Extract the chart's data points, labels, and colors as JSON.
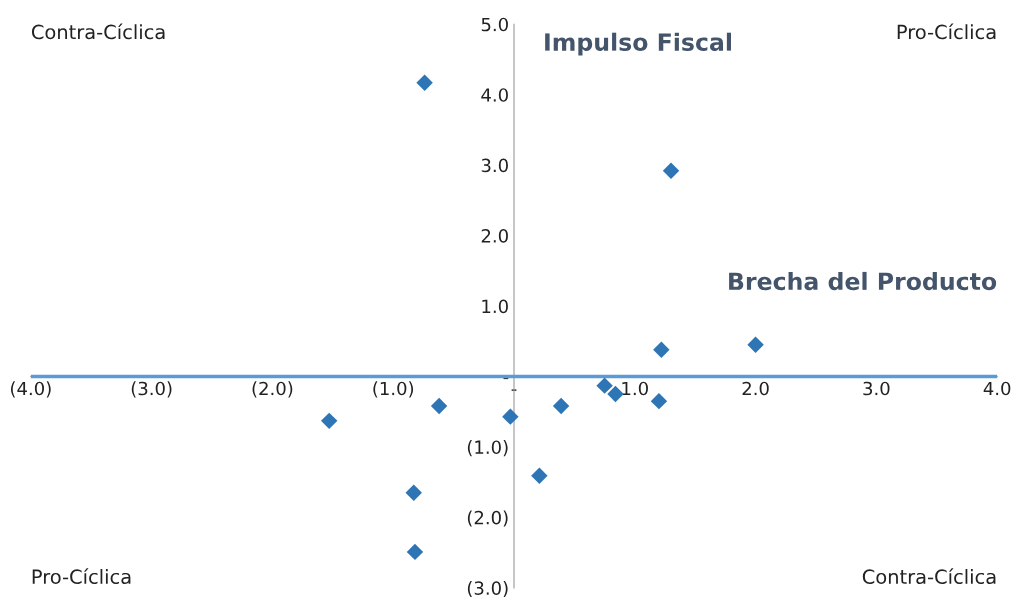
{
  "chart_data": {
    "type": "scatter",
    "xlabel": "Brecha del Producto",
    "ylabel": "Impulso Fiscal",
    "x": [
      -0.74,
      1.3,
      1.22,
      2.0,
      0.75,
      0.84,
      1.2,
      0.39,
      -0.62,
      -0.03,
      -1.53,
      0.21,
      -0.83,
      -0.82
    ],
    "series": [
      {
        "color": "#2e75b6",
        "values": [
          4.17,
          2.92,
          0.38,
          0.45,
          -0.13,
          -0.25,
          -0.35,
          -0.42,
          -0.42,
          -0.57,
          -0.63,
          -1.41,
          -1.65,
          -2.49
        ]
      }
    ],
    "marker": "diamond",
    "grid": false,
    "legend": false,
    "xlim": [
      -4,
      4
    ],
    "ylim": [
      -3,
      5
    ],
    "xticks": [
      {
        "value": -4,
        "label": "(4.0)"
      },
      {
        "value": -3,
        "label": "(3.0)"
      },
      {
        "value": -2,
        "label": "(2.0)"
      },
      {
        "value": -1,
        "label": "(1.0)"
      },
      {
        "value": 0,
        "label": "-"
      },
      {
        "value": 1,
        "label": "1.0"
      },
      {
        "value": 2,
        "label": "2.0"
      },
      {
        "value": 3,
        "label": "3.0"
      },
      {
        "value": 4,
        "label": "4.0"
      }
    ],
    "yticks": [
      {
        "value": -3,
        "label": "(3.0)"
      },
      {
        "value": -2,
        "label": "(2.0)"
      },
      {
        "value": -1,
        "label": "(1.0)"
      },
      {
        "value": 0,
        "label": "-"
      },
      {
        "value": 1,
        "label": "1.0"
      },
      {
        "value": 2,
        "label": "2.0"
      },
      {
        "value": 3,
        "label": "3.0"
      },
      {
        "value": 4,
        "label": "4.0"
      },
      {
        "value": 5,
        "label": "5.0"
      }
    ],
    "ref_lines": [
      {
        "axis": "y",
        "value": 0,
        "color": "#5b9bd5"
      }
    ],
    "annotations": [
      "Contra-Cíclica",
      "Pro-Cíclica",
      "Pro-Cíclica",
      "Contra-Cíclica"
    ]
  }
}
